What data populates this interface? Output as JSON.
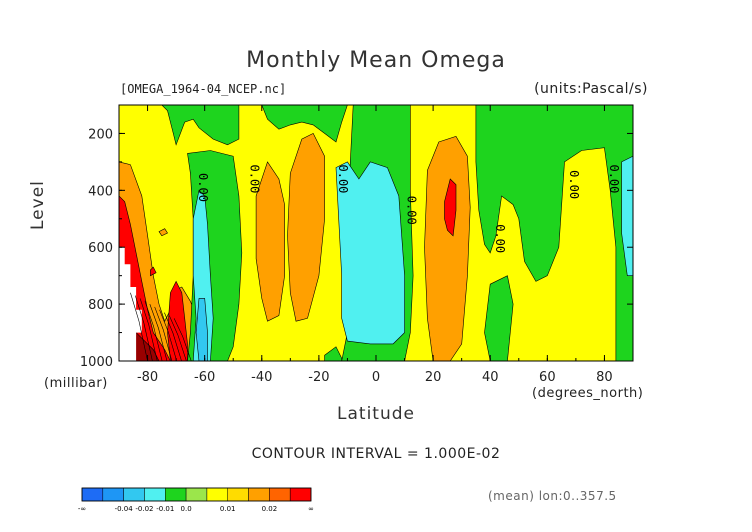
{
  "chart_data": {
    "type": "heatmap",
    "title": "Monthly Mean Omega",
    "file_info": "[OMEGA_1964-04_NCEP.nc]",
    "units": "(units:Pascal/s)",
    "ylabel": "Level",
    "yunit": "(millibar)",
    "xlabel": "Latitude",
    "xunit": "(degrees_north)",
    "contour_interval": "CONTOUR INTERVAL = 1.000E-02",
    "mean_info": "(mean) lon:0..357.5",
    "xlim": [
      -90,
      90
    ],
    "ylim": [
      1000,
      100
    ],
    "x_ticks": [
      -80,
      -60,
      -40,
      -20,
      0,
      20,
      40,
      60,
      80
    ],
    "x_tick_labels": [
      "-80",
      "-60",
      "-40",
      "-20",
      "0",
      "20",
      "40",
      "60",
      "80"
    ],
    "y_ticks": [
      200,
      400,
      600,
      800,
      1000
    ],
    "y_tick_labels": [
      "200",
      "400",
      "600",
      "800",
      "1000"
    ],
    "contour_labels": [
      {
        "text": "0.00",
        "lat": -62,
        "level": 390
      },
      {
        "text": "0.00",
        "lat": -44,
        "level": 360
      },
      {
        "text": "0.00",
        "lat": -13,
        "level": 360
      },
      {
        "text": "0.00",
        "lat": 11,
        "level": 470
      },
      {
        "text": "0.00",
        "lat": 42,
        "level": 570
      },
      {
        "text": "0.00",
        "lat": 68,
        "level": 380
      },
      {
        "text": "0.00",
        "lat": 82,
        "level": 360
      }
    ],
    "colorbar": {
      "colors": [
        "#1e6cf5",
        "#1e96f5",
        "#32c8f0",
        "#50f0f0",
        "#1ed41e",
        "#9be64b",
        "#ffff00",
        "#ffdc00",
        "#ffa000",
        "#ff6400",
        "#ff0000"
      ],
      "labels": [
        "-∞",
        "-0.04",
        "-0.02",
        "-0.01",
        "0.0",
        "0.01",
        "0.02",
        "∞"
      ]
    },
    "regions": [
      {
        "value": 0.005,
        "color": "#ffff00",
        "polygon": [
          [
            -90,
            100
          ],
          [
            90,
            100
          ],
          [
            90,
            1000
          ],
          [
            -90,
            1000
          ]
        ]
      },
      {
        "value": 0.01,
        "color": "#ffa000",
        "polygon": [
          [
            -90,
            300
          ],
          [
            -86,
            310
          ],
          [
            -82,
            420
          ],
          [
            -80,
            560
          ],
          [
            -78,
            700
          ],
          [
            -76,
            800
          ],
          [
            -74,
            860
          ],
          [
            -72,
            820
          ],
          [
            -70,
            750
          ],
          [
            -68,
            740
          ],
          [
            -65,
            790
          ],
          [
            -63,
            840
          ],
          [
            -62,
            920
          ],
          [
            -63,
            1000
          ],
          [
            -90,
            1000
          ]
        ]
      },
      {
        "value": 0.02,
        "color": "#ff0000",
        "polygon": [
          [
            -90,
            420
          ],
          [
            -88,
            440
          ],
          [
            -86,
            520
          ],
          [
            -84,
            620
          ],
          [
            -82,
            720
          ],
          [
            -80,
            820
          ],
          [
            -78,
            900
          ],
          [
            -74,
            960
          ],
          [
            -72,
            1000
          ],
          [
            -90,
            1000
          ]
        ]
      },
      {
        "value": 0.02,
        "color": "#ff0000",
        "polygon": [
          [
            -72,
            760
          ],
          [
            -70,
            720
          ],
          [
            -68,
            760
          ],
          [
            -67,
            850
          ],
          [
            -66,
            940
          ],
          [
            -66,
            1000
          ],
          [
            -72,
            1000
          ],
          [
            -73,
            900
          ]
        ]
      },
      {
        "value": 0.03,
        "color": "#990000",
        "polygon": [
          [
            -90,
            860
          ],
          [
            -86,
            880
          ],
          [
            -82,
            920
          ],
          [
            -78,
            960
          ],
          [
            -76,
            1000
          ],
          [
            -90,
            1000
          ]
        ]
      },
      {
        "value": null,
        "color": "#ffffff",
        "polygon": [
          [
            -90,
            600
          ],
          [
            -88,
            600
          ],
          [
            -88,
            660
          ],
          [
            -86,
            660
          ],
          [
            -86,
            740
          ],
          [
            -84,
            740
          ],
          [
            -84,
            820
          ],
          [
            -82,
            820
          ],
          [
            -82,
            900
          ],
          [
            -84,
            900
          ],
          [
            -84,
            1000
          ],
          [
            -90,
            1000
          ]
        ]
      },
      {
        "value": -0.005,
        "color": "#1ed41e",
        "polygon": [
          [
            -75,
            100
          ],
          [
            -48,
            100
          ],
          [
            -48,
            220
          ],
          [
            -52,
            240
          ],
          [
            -57,
            220
          ],
          [
            -62,
            180
          ],
          [
            -64,
            150
          ],
          [
            -67,
            160
          ],
          [
            -70,
            240
          ],
          [
            -71,
            200
          ],
          [
            -73,
            120
          ]
        ]
      },
      {
        "value": -0.005,
        "color": "#1ed41e",
        "polygon": [
          [
            -66,
            270
          ],
          [
            -58,
            260
          ],
          [
            -50,
            280
          ],
          [
            -48,
            420
          ],
          [
            -47,
            620
          ],
          [
            -48,
            800
          ],
          [
            -50,
            950
          ],
          [
            -52,
            1000
          ],
          [
            -66,
            1000
          ],
          [
            -65,
            900
          ],
          [
            -64,
            700
          ],
          [
            -64,
            500
          ],
          [
            -65,
            340
          ]
        ]
      },
      {
        "value": -0.005,
        "color": "#1ed41e",
        "polygon": [
          [
            -40,
            100
          ],
          [
            -10,
            100
          ],
          [
            -12,
            160
          ],
          [
            -14,
            230
          ],
          [
            -18,
            200
          ],
          [
            -22,
            170
          ],
          [
            -26,
            160
          ],
          [
            -30,
            170
          ],
          [
            -34,
            185
          ],
          [
            -38,
            150
          ]
        ]
      },
      {
        "value": -0.005,
        "color": "#1ed41e",
        "polygon": [
          [
            -18,
            980
          ],
          [
            -14,
            950
          ],
          [
            -12,
            990
          ],
          [
            -12,
            1000
          ],
          [
            -18,
            1000
          ]
        ]
      },
      {
        "value": -0.005,
        "color": "#1ed41e",
        "polygon": [
          [
            -8,
            100
          ],
          [
            12,
            100
          ],
          [
            12,
            400
          ],
          [
            13,
            700
          ],
          [
            12,
            900
          ],
          [
            10,
            1000
          ],
          [
            -12,
            1000
          ],
          [
            -10,
            900
          ],
          [
            -10,
            700
          ],
          [
            -9,
            300
          ]
        ]
      },
      {
        "value": -0.005,
        "color": "#1ed41e",
        "polygon": [
          [
            35,
            100
          ],
          [
            90,
            100
          ],
          [
            90,
            1000
          ],
          [
            84,
            1000
          ],
          [
            84,
            800
          ],
          [
            84,
            600
          ],
          [
            82,
            400
          ],
          [
            80,
            250
          ],
          [
            72,
            260
          ],
          [
            66,
            300
          ],
          [
            64,
            600
          ],
          [
            60,
            700
          ],
          [
            56,
            720
          ],
          [
            52,
            650
          ],
          [
            50,
            500
          ],
          [
            48,
            450
          ],
          [
            44,
            420
          ],
          [
            42,
            560
          ],
          [
            40,
            620
          ],
          [
            38,
            590
          ],
          [
            36,
            470
          ],
          [
            35,
            300
          ]
        ]
      },
      {
        "value": -0.005,
        "color": "#1ed41e",
        "polygon": [
          [
            40,
            730
          ],
          [
            46,
            700
          ],
          [
            48,
            800
          ],
          [
            46,
            1000
          ],
          [
            40,
            1000
          ],
          [
            38,
            900
          ]
        ]
      },
      {
        "value": -0.01,
        "color": "#50f0f0",
        "polygon": [
          [
            -62,
            400
          ],
          [
            -60,
            420
          ],
          [
            -59,
            520
          ],
          [
            -58,
            700
          ],
          [
            -57,
            850
          ],
          [
            -58,
            1000
          ],
          [
            -64,
            1000
          ],
          [
            -63,
            850
          ],
          [
            -64,
            700
          ],
          [
            -64,
            500
          ]
        ]
      },
      {
        "value": -0.01,
        "color": "#50f0f0",
        "polygon": [
          [
            -14,
            320
          ],
          [
            -10,
            300
          ],
          [
            -6,
            360
          ],
          [
            -2,
            300
          ],
          [
            4,
            320
          ],
          [
            8,
            420
          ],
          [
            10,
            700
          ],
          [
            10,
            900
          ],
          [
            6,
            940
          ],
          [
            -2,
            940
          ],
          [
            -10,
            930
          ],
          [
            -12,
            850
          ],
          [
            -12,
            700
          ]
        ]
      },
      {
        "value": -0.01,
        "color": "#50f0f0",
        "polygon": [
          [
            86,
            300
          ],
          [
            90,
            280
          ],
          [
            90,
            700
          ],
          [
            88,
            700
          ],
          [
            86,
            550
          ]
        ]
      },
      {
        "value": -0.02,
        "color": "#32c8f0",
        "polygon": [
          [
            -62,
            780
          ],
          [
            -60,
            780
          ],
          [
            -59,
            900
          ],
          [
            -59,
            1000
          ],
          [
            -62,
            1000
          ],
          [
            -63,
            900
          ]
        ]
      },
      {
        "value": 0.01,
        "color": "#ffa000",
        "polygon": [
          [
            -42,
            420
          ],
          [
            -38,
            300
          ],
          [
            -34,
            360
          ],
          [
            -32,
            450
          ],
          [
            -32,
            700
          ],
          [
            -34,
            840
          ],
          [
            -38,
            860
          ],
          [
            -40,
            780
          ],
          [
            -42,
            640
          ]
        ]
      },
      {
        "value": 0.01,
        "color": "#ffa000",
        "polygon": [
          [
            -30,
            340
          ],
          [
            -26,
            220
          ],
          [
            -22,
            200
          ],
          [
            -18,
            280
          ],
          [
            -18,
            500
          ],
          [
            -20,
            700
          ],
          [
            -24,
            850
          ],
          [
            -28,
            860
          ],
          [
            -30,
            760
          ],
          [
            -31,
            560
          ]
        ]
      },
      {
        "value": 0.01,
        "color": "#ffa000",
        "polygon": [
          [
            18,
            330
          ],
          [
            22,
            230
          ],
          [
            28,
            210
          ],
          [
            32,
            280
          ],
          [
            33,
            460
          ],
          [
            32,
            700
          ],
          [
            30,
            940
          ],
          [
            26,
            1000
          ],
          [
            20,
            1000
          ],
          [
            18,
            850
          ],
          [
            17,
            600
          ]
        ]
      },
      {
        "value": 0.02,
        "color": "#ff0000",
        "polygon": [
          [
            24,
            440
          ],
          [
            26,
            360
          ],
          [
            28,
            380
          ],
          [
            28,
            470
          ],
          [
            27,
            560
          ],
          [
            25,
            540
          ],
          [
            24,
            500
          ]
        ]
      },
      {
        "value": 0.01,
        "color": "#ffa000",
        "polygon": [
          [
            -76,
            545
          ],
          [
            -74,
            535
          ],
          [
            -73,
            550
          ],
          [
            -75,
            560
          ]
        ]
      },
      {
        "value": 0.015,
        "color": "#ff0000",
        "polygon": [
          [
            -79,
            680
          ],
          [
            -78,
            670
          ],
          [
            -77,
            690
          ],
          [
            -79,
            700
          ]
        ]
      }
    ]
  }
}
